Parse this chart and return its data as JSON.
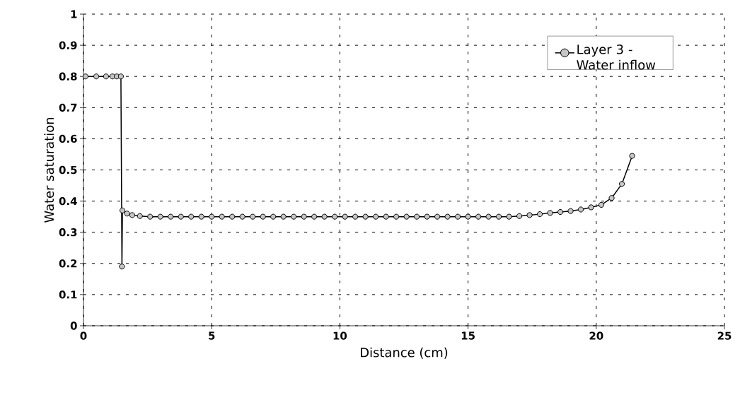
{
  "chart_data": {
    "type": "line",
    "xlabel": "Distance (cm)",
    "ylabel": "Water saturation",
    "xlim": [
      0,
      25
    ],
    "xticks": [
      0,
      5,
      10,
      15,
      20,
      25
    ],
    "ylim": [
      0,
      1
    ],
    "yticks": [
      0,
      0.1,
      0.2,
      0.3,
      0.4,
      0.5,
      0.6,
      0.7,
      0.8,
      0.9,
      1
    ],
    "grid": true,
    "legend": "top right",
    "marker": "circle",
    "line_style": "solid",
    "series": [
      {
        "name": "Layer 3 - Water inflow",
        "color": "#000000",
        "x": [
          0.08,
          0.5,
          0.88,
          1.13,
          1.3,
          1.46,
          1.5,
          1.52,
          1.7,
          1.9,
          2.2,
          2.6,
          3.0,
          3.4,
          3.8,
          4.2,
          4.6,
          5.0,
          5.4,
          5.8,
          6.2,
          6.6,
          7.0,
          7.4,
          7.8,
          8.2,
          8.6,
          9.0,
          9.4,
          9.8,
          10.2,
          10.6,
          11.0,
          11.4,
          11.8,
          12.2,
          12.6,
          13.0,
          13.4,
          13.8,
          14.2,
          14.6,
          15.0,
          15.4,
          15.8,
          16.2,
          16.6,
          17.0,
          17.4,
          17.8,
          18.2,
          18.6,
          19.0,
          19.4,
          19.8,
          20.2,
          20.6,
          21.0,
          21.4
        ],
        "values": [
          0.8,
          0.8,
          0.8,
          0.8,
          0.8,
          0.8,
          0.19,
          0.37,
          0.36,
          0.355,
          0.352,
          0.35,
          0.35,
          0.35,
          0.35,
          0.35,
          0.35,
          0.35,
          0.35,
          0.35,
          0.35,
          0.35,
          0.35,
          0.35,
          0.35,
          0.35,
          0.35,
          0.35,
          0.35,
          0.35,
          0.35,
          0.35,
          0.35,
          0.35,
          0.35,
          0.35,
          0.35,
          0.35,
          0.35,
          0.35,
          0.35,
          0.35,
          0.35,
          0.35,
          0.35,
          0.35,
          0.35,
          0.352,
          0.355,
          0.358,
          0.362,
          0.365,
          0.368,
          0.373,
          0.38,
          0.388,
          0.41,
          0.455,
          0.545
        ]
      }
    ]
  }
}
